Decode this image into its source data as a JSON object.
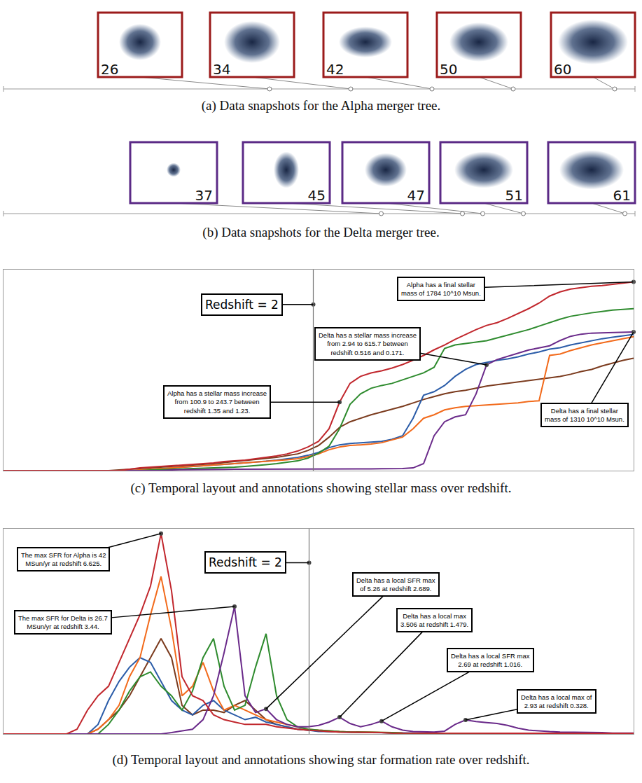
{
  "snapshots": [
    {
      "caption": "(a) Data snapshots for the Alpha merger tree.",
      "color": "#9b1b1b",
      "labels": [
        26,
        34,
        42,
        50,
        60
      ]
    },
    {
      "caption": "(b) Data snapshots for the Delta merger tree.",
      "color": "#5b2a86",
      "labels": [
        37,
        45,
        47,
        51,
        61
      ]
    }
  ],
  "chart_data": [
    {
      "type": "line",
      "caption": "(c) Temporal layout and annotations showing stellar mass over redshift.",
      "x": [
        0,
        1,
        2,
        3,
        4,
        5,
        6,
        7,
        8,
        9,
        10,
        11,
        12,
        13,
        14,
        15,
        16,
        17,
        18,
        19,
        20,
        21,
        22,
        23,
        24,
        25,
        26,
        27,
        28,
        29,
        30,
        31,
        32,
        33,
        34,
        35,
        36,
        37,
        38,
        39,
        40,
        41,
        42,
        43,
        44,
        45,
        46,
        47,
        48,
        49,
        50,
        51,
        52,
        53,
        54,
        55,
        56,
        57,
        58,
        59,
        60
      ],
      "xlim": [
        0,
        60
      ],
      "ylim": [
        0,
        1900
      ],
      "tick_labels": false,
      "grid": false,
      "reference_lines": [
        {
          "x": 29.5,
          "label": "Redshift = 2",
          "label_y": 1571
        }
      ],
      "series": [
        {
          "color": "#7b3b1e",
          "values": [
            0,
            0,
            0,
            0,
            0,
            0,
            0,
            0,
            0,
            0,
            0,
            7,
            13,
            20,
            26,
            33,
            40,
            46,
            53,
            59,
            66,
            76,
            86,
            96,
            106,
            116,
            125,
            142,
            158,
            191,
            238,
            317,
            409,
            462,
            495,
            528,
            554,
            581,
            607,
            640,
            673,
            700,
            726,
            746,
            759,
            779,
            799,
            812,
            825,
            838,
            851,
            865,
            878,
            891,
            911,
            937,
            957,
            990,
            1016,
            1043,
            1063
          ]
        },
        {
          "color": "#2b5ca8",
          "values": [
            0,
            0,
            0,
            0,
            0,
            0,
            0,
            0,
            0,
            0,
            0,
            0,
            0,
            7,
            13,
            20,
            26,
            33,
            40,
            46,
            53,
            59,
            66,
            73,
            79,
            89,
            99,
            112,
            125,
            145,
            172,
            218,
            244,
            257,
            264,
            271,
            277,
            297,
            330,
            495,
            713,
            746,
            805,
            891,
            957,
            1003,
            1023,
            1043,
            1056,
            1076,
            1102,
            1122,
            1148,
            1162,
            1188,
            1208,
            1228,
            1247,
            1261,
            1274,
            1287
          ]
        },
        {
          "color": "#f26a1b",
          "values": [
            0,
            0,
            0,
            0,
            0,
            0,
            0,
            0,
            0,
            0,
            0,
            0,
            0,
            7,
            13,
            20,
            26,
            33,
            40,
            46,
            53,
            59,
            66,
            73,
            79,
            86,
            92,
            102,
            112,
            132,
            158,
            198,
            224,
            238,
            244,
            251,
            264,
            290,
            317,
            396,
            495,
            528,
            574,
            594,
            607,
            614,
            620,
            627,
            634,
            640,
            653,
            660,
            1089,
            1102,
            1135,
            1162,
            1188,
            1208,
            1228,
            1247,
            1267
          ]
        },
        {
          "color": "#2e8b2e",
          "values": [
            0,
            0,
            0,
            0,
            0,
            0,
            0,
            0,
            0,
            0,
            0,
            0,
            0,
            0,
            7,
            10,
            13,
            16,
            20,
            23,
            26,
            30,
            33,
            40,
            46,
            56,
            66,
            79,
            92,
            119,
            165,
            231,
            396,
            627,
            726,
            779,
            805,
            825,
            858,
            891,
            924,
            977,
            1155,
            1188,
            1201,
            1214,
            1228,
            1254,
            1280,
            1307,
            1333,
            1366,
            1399,
            1432,
            1459,
            1478,
            1492,
            1505,
            1518,
            1525,
            1531
          ]
        },
        {
          "name": "Delta",
          "color": "#6a2a8a",
          "values": [
            0,
            0,
            0,
            0,
            0,
            0,
            0,
            0,
            0,
            0,
            0,
            0,
            0,
            0,
            0,
            0,
            7,
            7,
            7,
            8,
            10,
            11,
            13,
            13,
            13,
            13,
            13,
            13,
            13,
            14,
            15,
            15,
            15,
            16,
            17,
            17,
            18,
            19,
            20,
            26,
            66,
            330,
            462,
            508,
            528,
            726,
            1000,
            1050,
            1080,
            1110,
            1140,
            1160,
            1180,
            1230,
            1270,
            1290,
            1300,
            1303,
            1306,
            1308,
            1310
          ]
        },
        {
          "name": "Alpha",
          "color": "#c1272d",
          "values": [
            0,
            0,
            0,
            0,
            0,
            0,
            0,
            0,
            0,
            0,
            0,
            0,
            13,
            26,
            33,
            40,
            46,
            53,
            59,
            66,
            73,
            86,
            92,
            99,
            112,
            125,
            139,
            158,
            185,
            224,
            277,
            396,
            647,
            825,
            891,
            924,
            944,
            970,
            1003,
            1043,
            1089,
            1142,
            1188,
            1241,
            1287,
            1333,
            1373,
            1399,
            1439,
            1485,
            1531,
            1584,
            1650,
            1690,
            1716,
            1729,
            1742,
            1749,
            1762,
            1775,
            1784
          ]
        }
      ],
      "annotations": [
        {
          "text": [
            "Alpha has a final stellar",
            "mass of 1784 10^10 Msun."
          ],
          "series": "Alpha",
          "x": 60
        },
        {
          "text": [
            "Delta has a final stellar",
            "mass of 1310 10^10 Msun."
          ],
          "series": "Delta",
          "x": 60
        },
        {
          "text": [
            "Alpha has a stellar mass increase",
            "from 100.9 to 243.7 between",
            "redshift 1.35 and 1.23."
          ],
          "series": "Alpha",
          "x": 32
        },
        {
          "text": [
            "Delta has a stellar mass increase",
            "from 2.94 to 615.7 between",
            "redshift 0.516 and 0.171."
          ],
          "series": "Delta",
          "x": 46
        }
      ]
    },
    {
      "type": "line",
      "caption": "(d) Temporal layout and annotations showing star formation rate over redshift.",
      "x": [
        0,
        1,
        2,
        3,
        4,
        5,
        6,
        7,
        8,
        9,
        10,
        11,
        12,
        13,
        14,
        15,
        16,
        17,
        18,
        19,
        20,
        21,
        22,
        23,
        24,
        25,
        26,
        27,
        28,
        29,
        30,
        31,
        32,
        33,
        34,
        35,
        36,
        37,
        38,
        39,
        40,
        41,
        42,
        43,
        44,
        45,
        46,
        47,
        48,
        49,
        50,
        51,
        52,
        53,
        54,
        55,
        56,
        57,
        58,
        59,
        60
      ],
      "xlim": [
        0,
        60
      ],
      "ylim": [
        0,
        43
      ],
      "tick_labels": false,
      "grid": false,
      "reference_lines": [
        {
          "x": 29.1,
          "label": "Redshift = 2",
          "label_y": 35.9
        }
      ],
      "series": [
        {
          "color": "#7b3b1e",
          "values": [
            0,
            0,
            0,
            0,
            0,
            0,
            0,
            0,
            0,
            1,
            3,
            5,
            8,
            12,
            16,
            20,
            16,
            6,
            4,
            5,
            5,
            4.5,
            6,
            7,
            5,
            3,
            2,
            1.5,
            1,
            0.8,
            0.6,
            0.5,
            0.4,
            0.4,
            0.3,
            0.3,
            0.3,
            0.2,
            0.2,
            0.2,
            0.2,
            0.1,
            0.1,
            0.1,
            0.1,
            0.1,
            0.1,
            0.1,
            0.1,
            0.1,
            0.1,
            0.1,
            0.1,
            0.1,
            0.1,
            0.1,
            0.1,
            0.1,
            0.1,
            0.1,
            0.1
          ]
        },
        {
          "color": "#2b5ca8",
          "values": [
            0,
            0,
            0,
            0,
            0,
            0,
            0,
            0,
            0,
            2,
            7,
            11,
            14,
            16,
            15,
            11,
            7,
            5,
            4,
            6,
            7,
            5,
            4,
            3,
            3.5,
            2.5,
            2,
            1.5,
            1,
            0.8,
            0.5,
            0.5,
            0.4,
            0.4,
            0.3,
            0.3,
            0.3,
            0.2,
            0.2,
            0.2,
            0.2,
            0.1,
            0.1,
            0.1,
            0.1,
            0.1,
            0.1,
            0.1,
            0.1,
            0.1,
            0.1,
            0.1,
            0.1,
            0.1,
            0.1,
            0.1,
            0.1,
            0.1,
            0.1,
            0.1,
            0.1
          ]
        },
        {
          "color": "#f26a1b",
          "values": [
            0,
            0,
            0,
            0,
            0,
            0,
            0,
            0,
            0,
            1,
            3,
            6,
            12,
            16,
            25,
            33,
            22,
            8,
            10,
            15,
            9,
            5,
            6,
            5,
            4,
            3,
            2.5,
            2,
            1.5,
            1,
            0.8,
            0.6,
            0.5,
            0.4,
            0.4,
            0.3,
            0.3,
            0.3,
            0.2,
            0.2,
            0.2,
            0.1,
            0.1,
            0.1,
            0.1,
            0.1,
            0.1,
            0.1,
            0.1,
            0.1,
            0.1,
            0.1,
            0.1,
            0.1,
            0.1,
            0.1,
            0.1,
            0.1,
            0.1,
            0.1,
            0.1
          ]
        },
        {
          "color": "#2e8b2e",
          "values": [
            0,
            0,
            0,
            0,
            0,
            0,
            0,
            0,
            0,
            0,
            2,
            5,
            9,
            12,
            13,
            10,
            8,
            5,
            9,
            16,
            20,
            10,
            5,
            6,
            14,
            21,
            8,
            3,
            1.5,
            1,
            0.8,
            0.6,
            0.5,
            0.4,
            0.4,
            0.3,
            0.3,
            0.3,
            0.2,
            0.2,
            0.2,
            0.1,
            0.1,
            0.1,
            0.1,
            0.1,
            0.1,
            0.1,
            0.1,
            0.1,
            0.1,
            0.1,
            0.1,
            0.1,
            0.1,
            0.1,
            0.1,
            0.1,
            0.1,
            0.1,
            0.1
          ]
        },
        {
          "name": "Delta",
          "color": "#6a2a8a",
          "values": [
            0,
            0,
            0,
            0,
            0,
            0,
            0,
            0,
            0,
            0,
            0,
            0,
            0,
            0,
            0,
            0,
            0.3,
            0.6,
            1,
            3,
            8,
            17,
            26.7,
            8,
            4.5,
            5.26,
            3,
            2,
            1.5,
            1.5,
            1.8,
            2.5,
            3.506,
            2.2,
            1.5,
            2,
            2.69,
            1.5,
            0.8,
            0.5,
            0.4,
            0.4,
            0.6,
            2,
            2.93,
            2.6,
            2.4,
            2.2,
            1.8,
            1.2,
            0.8,
            0.6,
            0.5,
            0.4,
            0.4,
            0.3,
            0.3,
            0.3,
            0.2,
            0.2,
            0.2
          ]
        },
        {
          "name": "Alpha",
          "color": "#c1272d",
          "values": [
            0,
            0,
            0,
            0,
            0,
            0,
            0,
            1,
            5,
            8,
            10,
            15,
            20,
            25,
            31,
            42,
            30,
            12,
            8,
            7,
            4,
            3,
            2.5,
            2,
            2,
            2,
            1.5,
            1.2,
            1,
            0.8,
            0.6,
            0.5,
            0.4,
            0.4,
            0.3,
            0.3,
            0.3,
            0.2,
            0.2,
            0.2,
            0.2,
            0.1,
            0.1,
            0.1,
            0.1,
            0.1,
            0.1,
            0.1,
            0.1,
            0.1,
            0.1,
            0.1,
            0.1,
            0.1,
            0.1,
            0.1,
            0.1,
            0.1,
            0.1,
            0.1,
            0.1
          ]
        }
      ],
      "annotations": [
        {
          "text": [
            "The max SFR for Alpha is 42",
            "MSun/yr at redshift 6.625."
          ],
          "series": "Alpha",
          "x": 15
        },
        {
          "text": [
            "The max SFR for Delta is 26.7",
            "MSun/yr at redshift 3.44."
          ],
          "series": "Delta",
          "x": 22
        },
        {
          "text": [
            "Delta has a local SFR max",
            "of 5.26 at redshift 2.689."
          ],
          "series": "Delta",
          "x": 25
        },
        {
          "text": [
            "Delta has a local max",
            "3.506 at redshift 1.479."
          ],
          "series": "Delta",
          "x": 32
        },
        {
          "text": [
            "Delta has a local SFR max",
            "2.69 at redshift 1.016."
          ],
          "series": "Delta",
          "x": 36
        },
        {
          "text": [
            "Delta has a local max of",
            "2.93 at redshift 0.328."
          ],
          "series": "Delta",
          "x": 44
        }
      ]
    }
  ]
}
